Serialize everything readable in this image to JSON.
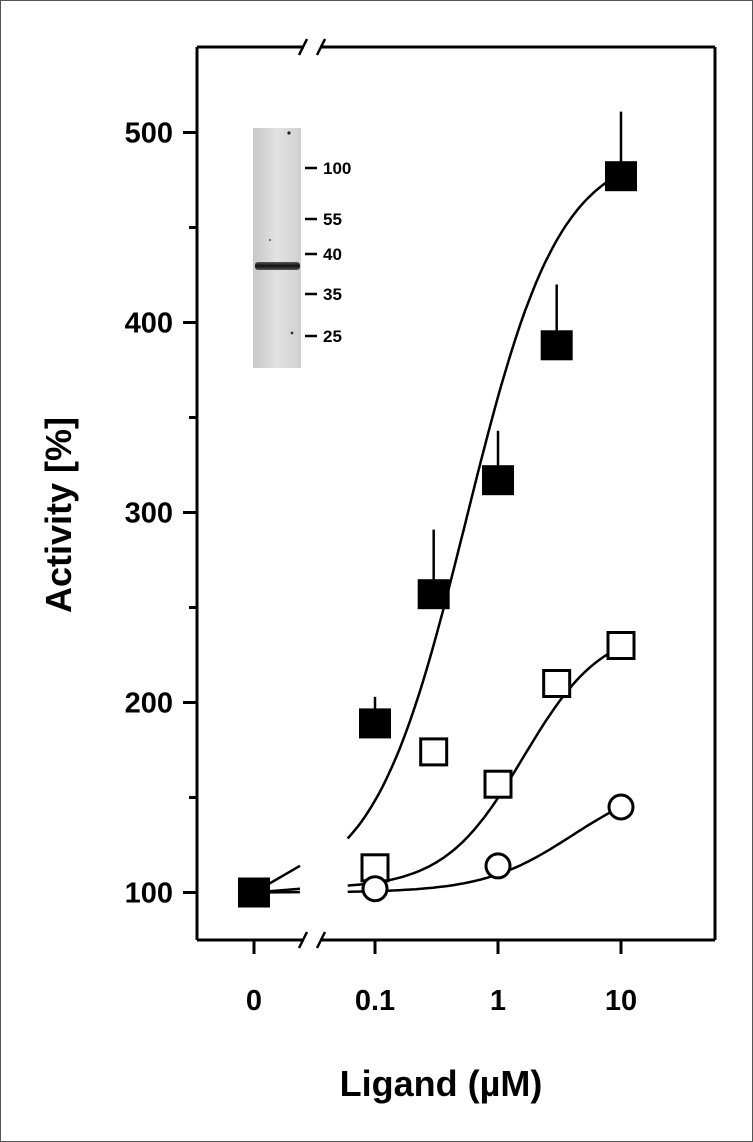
{
  "chart_data": {
    "type": "scatter",
    "title": "",
    "xlabel": "Ligand (µM)",
    "ylabel": "Activity [%]",
    "xscale": "log with break at 0",
    "ylim": [
      75,
      545
    ],
    "x_ticks": [
      {
        "x": 0,
        "label": "0"
      },
      {
        "x": 0.1,
        "label": "0.1"
      },
      {
        "x": 1,
        "label": "1"
      },
      {
        "x": 10,
        "label": "10"
      }
    ],
    "y_ticks": [
      {
        "y": 100,
        "label": "100"
      },
      {
        "y": 200,
        "label": "200"
      },
      {
        "y": 300,
        "label": "300"
      },
      {
        "y": 400,
        "label": "400"
      },
      {
        "y": 500,
        "label": "500"
      }
    ],
    "y_minor_ticks": [
      150,
      250,
      350,
      450
    ],
    "axis_break": "x-axis between 0 and 0.1",
    "grid": false,
    "legend": "none",
    "series": [
      {
        "marker": "filled-square",
        "x": [
          0,
          0.1,
          0.3,
          1,
          3,
          10
        ],
        "y": [
          100,
          189,
          257,
          317,
          388,
          477
        ],
        "error_plus": [
          0,
          14,
          34,
          26,
          32,
          34
        ],
        "fit_curve": true
      },
      {
        "marker": "open-square",
        "x": [
          0.1,
          0.3,
          1,
          3,
          10
        ],
        "y": [
          113,
          174,
          157,
          210,
          230
        ],
        "fit_curve": true
      },
      {
        "marker": "open-circle",
        "x": [
          0.1,
          1,
          10
        ],
        "y": [
          102,
          114,
          145
        ],
        "fit_curve": true
      }
    ],
    "inset_blot": {
      "markers": [
        "100",
        "55",
        "40",
        "35",
        "25"
      ]
    },
    "colors": {
      "ink": "#000000",
      "background": "#ffffff"
    }
  }
}
